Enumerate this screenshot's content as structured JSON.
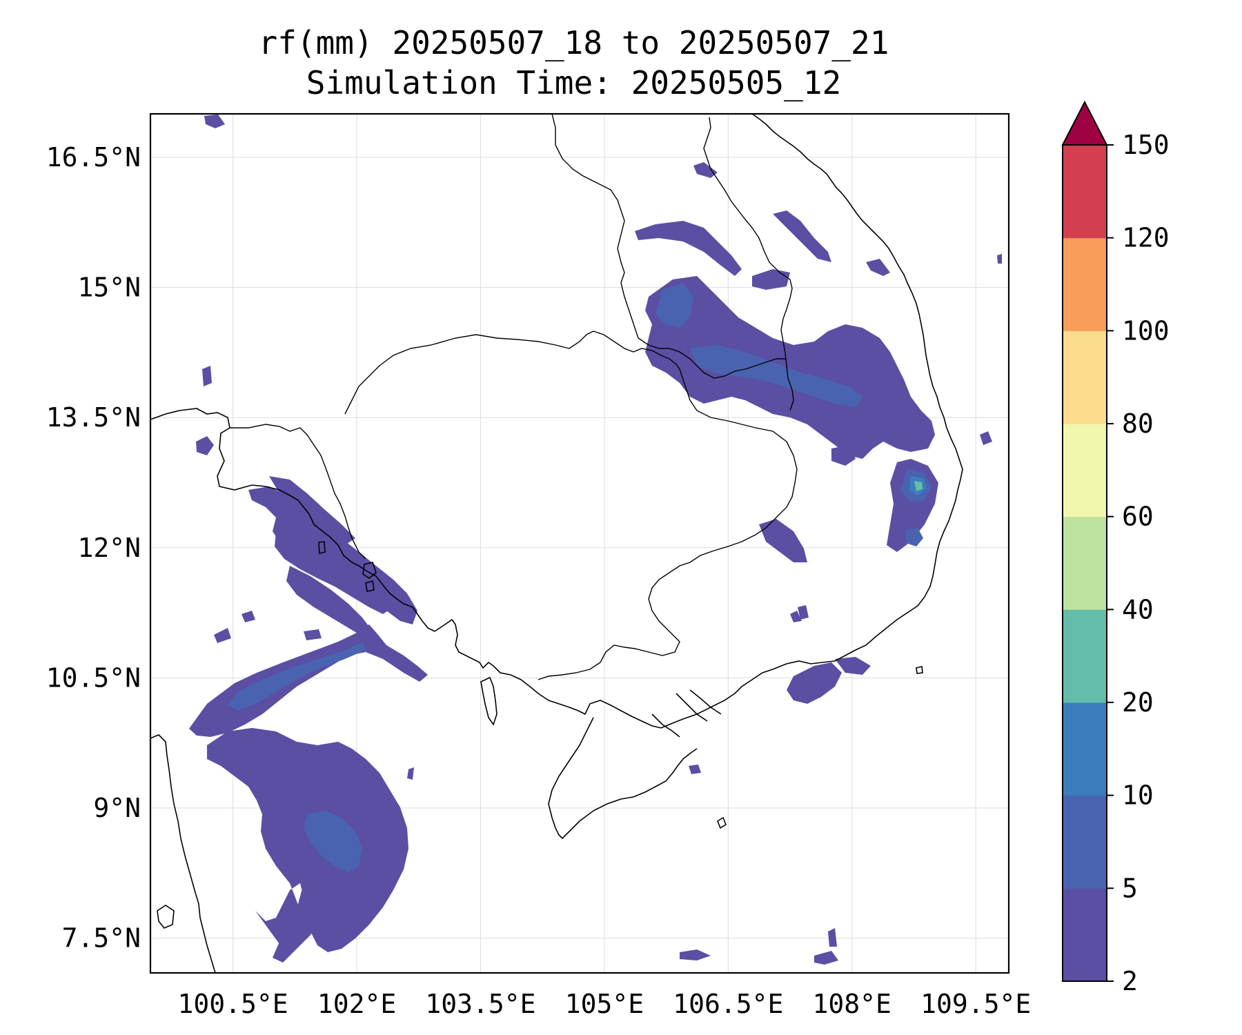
{
  "title": {
    "line1": "rf(mm) 20250507_18 to 20250507_21",
    "line2": "Simulation Time: 20250505_12"
  },
  "map": {
    "lon_range": [
      99.5,
      109.9
    ],
    "lat_range": [
      7.1,
      17.0
    ],
    "lon_ticks": [
      100.5,
      102,
      103.5,
      105,
      106.5,
      108,
      109.5
    ],
    "lon_tick_labels": [
      "100.5°E",
      "102°E",
      "103.5°E",
      "105°E",
      "106.5°E",
      "108°E",
      "109.5°E"
    ],
    "lat_ticks": [
      16.5,
      15,
      13.5,
      12,
      10.5,
      9,
      7.5
    ],
    "lat_tick_labels": [
      "16.5°N",
      "15°N",
      "13.5°N",
      "12°N",
      "10.5°N",
      "9°N",
      "7.5°N"
    ],
    "gridlines": true
  },
  "colorbar": {
    "levels": [
      2,
      5,
      10,
      20,
      40,
      60,
      80,
      100,
      120,
      150
    ],
    "level_labels": [
      "2",
      "5",
      "10",
      "20",
      "40",
      "60",
      "80",
      "100",
      "120",
      "150"
    ],
    "colors": [
      "#5a4fa3",
      "#4a63b0",
      "#3a7fbb",
      "#63bda9",
      "#bde3a0",
      "#f1f7ac",
      "#fbdc8c",
      "#f99d5b",
      "#d33f4e"
    ],
    "extend_color": "#9e0142",
    "extend": "max"
  },
  "colors": {
    "rain_light": "#5a4fa3",
    "rain_medium": "#4a63b0",
    "rain_heavy": "#3a7fbb",
    "rain_intense": "#63bda9",
    "rain_peak": "#bde3a0"
  }
}
